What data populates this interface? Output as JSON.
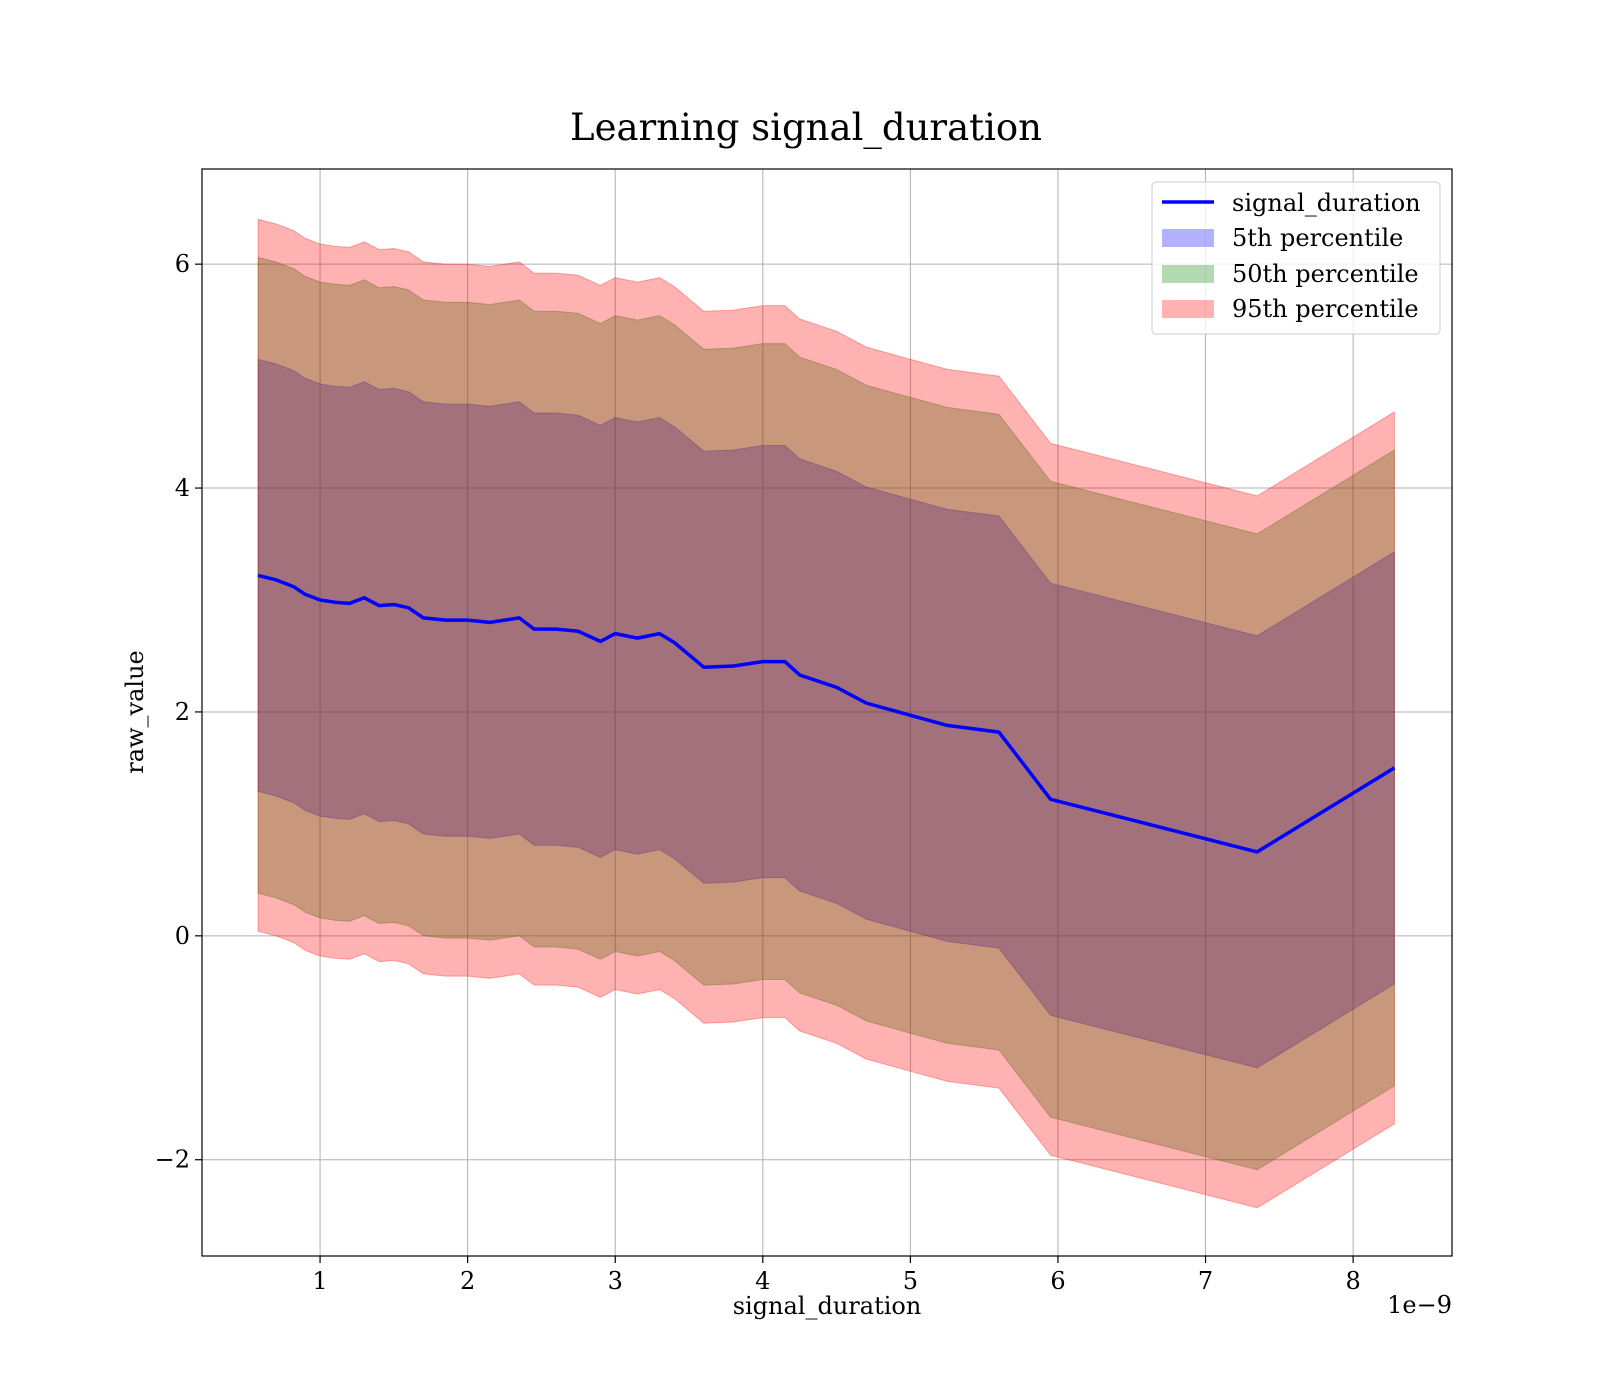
{
  "chart_data": {
    "type": "area",
    "title": "Learning signal_duration",
    "xlabel": "signal_duration",
    "ylabel": "raw_value",
    "x_offset_label": "1e−9",
    "xlim": [
      0.2,
      8.67
    ],
    "ylim": [
      -2.86,
      6.85
    ],
    "x_ticks": [
      1,
      2,
      3,
      4,
      5,
      6,
      7,
      8
    ],
    "x_tick_labels": [
      "1",
      "2",
      "3",
      "4",
      "5",
      "6",
      "7",
      "8"
    ],
    "y_ticks": [
      -2,
      0,
      2,
      4,
      6
    ],
    "y_tick_labels": [
      "−2",
      "0",
      "2",
      "4",
      "6"
    ],
    "grid": true,
    "legend_position": "top-right",
    "legend": [
      {
        "label": "signal_duration",
        "kind": "line",
        "color": "#0000ff"
      },
      {
        "label": "5th percentile",
        "kind": "patch",
        "color": "#0000ff"
      },
      {
        "label": "50th percentile",
        "kind": "patch",
        "color": "#008000"
      },
      {
        "label": "95th percentile",
        "kind": "patch",
        "color": "#ff0000"
      }
    ],
    "x": [
      0.58,
      0.7,
      0.82,
      0.9,
      1.0,
      1.1,
      1.2,
      1.3,
      1.4,
      1.5,
      1.6,
      1.7,
      1.85,
      2.0,
      2.15,
      2.35,
      2.45,
      2.6,
      2.75,
      2.9,
      3.0,
      3.15,
      3.3,
      3.4,
      3.6,
      3.8,
      4.0,
      4.15,
      4.25,
      4.5,
      4.7,
      5.0,
      5.25,
      5.6,
      5.95,
      7.35,
      8.28
    ],
    "series": [
      {
        "name": "signal_duration",
        "values": [
          3.22,
          3.18,
          3.12,
          3.05,
          3.0,
          2.98,
          2.97,
          3.02,
          2.95,
          2.96,
          2.93,
          2.84,
          2.82,
          2.82,
          2.8,
          2.84,
          2.74,
          2.74,
          2.72,
          2.63,
          2.7,
          2.66,
          2.7,
          2.62,
          2.4,
          2.41,
          2.45,
          2.45,
          2.33,
          2.22,
          2.08,
          1.97,
          1.88,
          1.82,
          1.22,
          0.75,
          1.5
        ]
      },
      {
        "name": "5th percentile",
        "lower": [
          1.29,
          1.25,
          1.19,
          1.12,
          1.07,
          1.05,
          1.04,
          1.09,
          1.02,
          1.03,
          1.0,
          0.91,
          0.89,
          0.89,
          0.87,
          0.91,
          0.81,
          0.81,
          0.79,
          0.7,
          0.77,
          0.73,
          0.77,
          0.69,
          0.47,
          0.48,
          0.52,
          0.52,
          0.4,
          0.29,
          0.15,
          0.04,
          -0.05,
          -0.11,
          -0.71,
          -1.18,
          -0.43
        ],
        "upper": [
          5.15,
          5.11,
          5.05,
          4.98,
          4.93,
          4.91,
          4.9,
          4.95,
          4.88,
          4.89,
          4.86,
          4.77,
          4.75,
          4.75,
          4.73,
          4.77,
          4.67,
          4.67,
          4.65,
          4.56,
          4.63,
          4.59,
          4.63,
          4.55,
          4.33,
          4.34,
          4.38,
          4.38,
          4.26,
          4.15,
          4.01,
          3.9,
          3.81,
          3.75,
          3.15,
          2.68,
          3.43
        ]
      },
      {
        "name": "50th percentile",
        "lower": [
          0.38,
          0.34,
          0.28,
          0.21,
          0.16,
          0.14,
          0.13,
          0.18,
          0.11,
          0.12,
          0.09,
          0.0,
          -0.02,
          -0.02,
          -0.04,
          0.0,
          -0.1,
          -0.1,
          -0.12,
          -0.21,
          -0.14,
          -0.18,
          -0.14,
          -0.22,
          -0.44,
          -0.43,
          -0.39,
          -0.39,
          -0.51,
          -0.62,
          -0.76,
          -0.87,
          -0.96,
          -1.02,
          -1.62,
          -2.09,
          -1.34
        ],
        "upper": [
          6.06,
          6.02,
          5.96,
          5.89,
          5.84,
          5.82,
          5.81,
          5.86,
          5.79,
          5.8,
          5.77,
          5.68,
          5.66,
          5.66,
          5.64,
          5.68,
          5.58,
          5.58,
          5.56,
          5.47,
          5.54,
          5.5,
          5.54,
          5.46,
          5.24,
          5.25,
          5.29,
          5.29,
          5.17,
          5.06,
          4.92,
          4.81,
          4.72,
          4.66,
          4.06,
          3.59,
          4.34
        ]
      },
      {
        "name": "95th percentile",
        "lower": [
          0.04,
          0.0,
          -0.06,
          -0.13,
          -0.18,
          -0.2,
          -0.21,
          -0.16,
          -0.23,
          -0.22,
          -0.25,
          -0.34,
          -0.36,
          -0.36,
          -0.38,
          -0.34,
          -0.44,
          -0.44,
          -0.46,
          -0.55,
          -0.48,
          -0.52,
          -0.48,
          -0.56,
          -0.78,
          -0.77,
          -0.73,
          -0.73,
          -0.85,
          -0.96,
          -1.1,
          -1.21,
          -1.3,
          -1.36,
          -1.96,
          -2.43,
          -1.68
        ],
        "upper": [
          6.4,
          6.36,
          6.3,
          6.23,
          6.18,
          6.16,
          6.15,
          6.2,
          6.13,
          6.14,
          6.11,
          6.02,
          6.0,
          6.0,
          5.98,
          6.02,
          5.92,
          5.92,
          5.9,
          5.81,
          5.88,
          5.84,
          5.88,
          5.8,
          5.58,
          5.59,
          5.63,
          5.63,
          5.51,
          5.4,
          5.26,
          5.15,
          5.06,
          5.0,
          4.4,
          3.93,
          4.68
        ]
      }
    ],
    "colors": {
      "line": "#0000ff",
      "band_5": "#0000ff",
      "band_50": "#008000",
      "band_95": "#ff0000",
      "band_alpha": 0.3
    }
  }
}
